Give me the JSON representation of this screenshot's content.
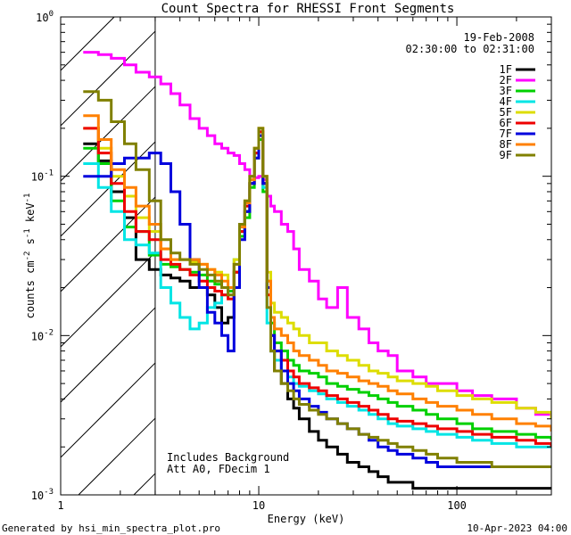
{
  "footer": {
    "generated_by": "Generated by hsi_min_spectra_plot.pro",
    "timestamp": "10-Apr-2023 04:00"
  },
  "info": {
    "date": "19-Feb-2008",
    "time_range": "02:30:00 to 02:31:00",
    "note1": "Includes Background",
    "note2": "Att A0, FDecim 1"
  },
  "colors": {
    "1F": "#000000",
    "2F": "#ff00ff",
    "3F": "#00d000",
    "4F": "#00e5e5",
    "5F": "#dddd00",
    "6F": "#ee0000",
    "7F": "#0000dd",
    "8F": "#ff8000",
    "9F": "#808000"
  },
  "chart_data": {
    "type": "line",
    "title": "Count Spectra for RHESSI Front Segments",
    "xlabel": "Energy (keV)",
    "ylabel": "counts cm^-2 s^-1 keV^-1",
    "xscale": "log",
    "yscale": "log",
    "xlim": [
      1,
      300
    ],
    "ylim": [
      0.001,
      1
    ],
    "x_ticks": [
      {
        "v": 1,
        "label": "1"
      },
      {
        "v": 10,
        "label": "10"
      },
      {
        "v": 100,
        "label": "100"
      }
    ],
    "y_ticks": [
      {
        "v": 0.001,
        "base": "10",
        "exp": "-3"
      },
      {
        "v": 0.01,
        "base": "10",
        "exp": "-2"
      },
      {
        "v": 0.1,
        "base": "10",
        "exp": "-1"
      },
      {
        "v": 1,
        "base": "10",
        "exp": "0"
      }
    ],
    "attenuator_cutoff_keV": 3,
    "legend_position": "top-right",
    "series": [
      {
        "name": "1F",
        "x": [
          1.3,
          1.55,
          1.8,
          2.1,
          2.4,
          2.8,
          3.2,
          3.6,
          4.0,
          4.5,
          5.0,
          5.5,
          6.0,
          6.5,
          7.0,
          7.5,
          8.0,
          8.5,
          9.0,
          9.5,
          10.0,
          10.5,
          11.0,
          11.5,
          12,
          13,
          14,
          15,
          16,
          18,
          20,
          22,
          25,
          28,
          32,
          36,
          40,
          45,
          50,
          60,
          70,
          80,
          100,
          120,
          150,
          200,
          250,
          300
        ],
        "y": [
          0.16,
          0.125,
          0.08,
          0.055,
          0.03,
          0.026,
          0.024,
          0.023,
          0.022,
          0.02,
          0.02,
          0.018,
          0.015,
          0.012,
          0.013,
          0.025,
          0.045,
          0.06,
          0.09,
          0.14,
          0.19,
          0.09,
          0.02,
          0.008,
          0.006,
          0.005,
          0.004,
          0.0035,
          0.003,
          0.0025,
          0.0022,
          0.002,
          0.0018,
          0.0016,
          0.0015,
          0.0014,
          0.0013,
          0.0012,
          0.0012,
          0.0011,
          0.0011,
          0.0011,
          0.0011,
          0.0011,
          0.0011,
          0.0011,
          0.0011,
          0.0011
        ]
      },
      {
        "name": "2F",
        "x": [
          1.3,
          1.55,
          1.8,
          2.1,
          2.4,
          2.8,
          3.2,
          3.6,
          4.0,
          4.5,
          5.0,
          5.5,
          6.0,
          6.5,
          7.0,
          7.5,
          8.0,
          8.5,
          9.0,
          9.5,
          10.0,
          10.5,
          11.0,
          11.5,
          12,
          13,
          14,
          15,
          16,
          18,
          20,
          22,
          25,
          28,
          32,
          36,
          40,
          45,
          50,
          60,
          70,
          80,
          100,
          120,
          150,
          200,
          250,
          300
        ],
        "y": [
          0.6,
          0.58,
          0.55,
          0.5,
          0.45,
          0.42,
          0.38,
          0.33,
          0.28,
          0.23,
          0.2,
          0.18,
          0.16,
          0.15,
          0.14,
          0.135,
          0.12,
          0.11,
          0.1,
          0.098,
          0.1,
          0.095,
          0.075,
          0.065,
          0.06,
          0.05,
          0.045,
          0.035,
          0.026,
          0.022,
          0.017,
          0.015,
          0.02,
          0.013,
          0.011,
          0.009,
          0.008,
          0.0075,
          0.006,
          0.0055,
          0.005,
          0.005,
          0.0045,
          0.0042,
          0.004,
          0.0035,
          0.0032,
          0.003
        ]
      },
      {
        "name": "3F",
        "x": [
          1.3,
          1.55,
          1.8,
          2.1,
          2.4,
          2.8,
          3.2,
          3.6,
          4.0,
          4.5,
          5.0,
          5.5,
          6.0,
          6.5,
          7.0,
          7.5,
          8.0,
          8.5,
          9.0,
          9.5,
          10.0,
          10.5,
          11.0,
          11.5,
          12,
          13,
          14,
          15,
          16,
          18,
          20,
          22,
          25,
          28,
          32,
          36,
          40,
          45,
          50,
          60,
          70,
          80,
          100,
          120,
          150,
          200,
          250,
          300
        ],
        "y": [
          0.15,
          0.12,
          0.07,
          0.048,
          0.045,
          0.032,
          0.028,
          0.027,
          0.026,
          0.025,
          0.024,
          0.022,
          0.021,
          0.02,
          0.019,
          0.025,
          0.042,
          0.055,
          0.085,
          0.13,
          0.17,
          0.08,
          0.022,
          0.012,
          0.009,
          0.008,
          0.007,
          0.0065,
          0.006,
          0.0058,
          0.0055,
          0.005,
          0.0048,
          0.0046,
          0.0044,
          0.0042,
          0.004,
          0.0038,
          0.0036,
          0.0034,
          0.0032,
          0.003,
          0.0028,
          0.0026,
          0.0025,
          0.0024,
          0.0023,
          0.0022
        ]
      },
      {
        "name": "4F",
        "x": [
          1.3,
          1.55,
          1.8,
          2.1,
          2.4,
          2.8,
          3.2,
          3.6,
          4.0,
          4.5,
          5.0,
          5.5,
          6.0,
          6.5,
          7.0,
          7.5,
          8.0,
          8.5,
          9.0,
          9.5,
          10.0,
          10.5,
          11.0,
          11.5,
          12,
          13,
          14,
          15,
          16,
          18,
          20,
          22,
          25,
          28,
          32,
          36,
          40,
          45,
          50,
          60,
          70,
          80,
          100,
          120,
          150,
          200,
          250,
          300
        ],
        "y": [
          0.12,
          0.085,
          0.06,
          0.04,
          0.037,
          0.033,
          0.02,
          0.016,
          0.013,
          0.011,
          0.012,
          0.015,
          0.016,
          0.018,
          0.02,
          0.03,
          0.045,
          0.065,
          0.09,
          0.14,
          0.18,
          0.085,
          0.012,
          0.008,
          0.007,
          0.006,
          0.0055,
          0.005,
          0.0048,
          0.0045,
          0.0043,
          0.004,
          0.0038,
          0.0036,
          0.0034,
          0.0032,
          0.003,
          0.0028,
          0.0027,
          0.0026,
          0.0025,
          0.0024,
          0.0023,
          0.0022,
          0.0021,
          0.002,
          0.002,
          0.002
        ]
      },
      {
        "name": "5F",
        "x": [
          1.3,
          1.55,
          1.8,
          2.1,
          2.4,
          2.8,
          3.2,
          3.6,
          4.0,
          4.5,
          5.0,
          5.5,
          6.0,
          6.5,
          7.0,
          7.5,
          8.0,
          8.5,
          9.0,
          9.5,
          10.0,
          10.5,
          11.0,
          11.5,
          12,
          13,
          14,
          15,
          16,
          18,
          20,
          22,
          25,
          28,
          32,
          36,
          40,
          45,
          50,
          60,
          70,
          80,
          100,
          120,
          150,
          200,
          250,
          300
        ],
        "y": [
          0.2,
          0.15,
          0.1,
          0.075,
          0.055,
          0.045,
          0.035,
          0.03,
          0.03,
          0.029,
          0.028,
          0.026,
          0.025,
          0.024,
          0.02,
          0.03,
          0.05,
          0.07,
          0.1,
          0.15,
          0.2,
          0.1,
          0.025,
          0.016,
          0.014,
          0.013,
          0.012,
          0.011,
          0.01,
          0.009,
          0.009,
          0.008,
          0.0075,
          0.007,
          0.0065,
          0.006,
          0.0058,
          0.0055,
          0.0052,
          0.005,
          0.0048,
          0.0045,
          0.0042,
          0.004,
          0.0038,
          0.0035,
          0.0033,
          0.003
        ]
      },
      {
        "name": "6F",
        "x": [
          1.3,
          1.55,
          1.8,
          2.1,
          2.4,
          2.8,
          3.2,
          3.6,
          4.0,
          4.5,
          5.0,
          5.5,
          6.0,
          6.5,
          7.0,
          7.5,
          8.0,
          8.5,
          9.0,
          9.5,
          10.0,
          10.5,
          11.0,
          11.5,
          12,
          13,
          14,
          15,
          16,
          18,
          20,
          22,
          25,
          28,
          32,
          36,
          40,
          45,
          50,
          60,
          70,
          80,
          100,
          120,
          150,
          200,
          250,
          300
        ],
        "y": [
          0.2,
          0.14,
          0.09,
          0.06,
          0.045,
          0.04,
          0.03,
          0.028,
          0.026,
          0.024,
          0.022,
          0.02,
          0.019,
          0.018,
          0.017,
          0.025,
          0.045,
          0.065,
          0.09,
          0.14,
          0.19,
          0.09,
          0.018,
          0.01,
          0.008,
          0.007,
          0.006,
          0.0055,
          0.005,
          0.0047,
          0.0045,
          0.0042,
          0.004,
          0.0038,
          0.0036,
          0.0034,
          0.0032,
          0.003,
          0.0029,
          0.0028,
          0.0027,
          0.0026,
          0.0025,
          0.0024,
          0.0023,
          0.0022,
          0.0021,
          0.002
        ]
      },
      {
        "name": "7F",
        "x": [
          1.3,
          1.55,
          1.8,
          2.1,
          2.4,
          2.8,
          3.2,
          3.6,
          4.0,
          4.5,
          5.0,
          5.5,
          6.0,
          6.5,
          7.0,
          7.5,
          8.0,
          8.5,
          9.0,
          9.5,
          10.0,
          10.5,
          11.0,
          11.5,
          12,
          13,
          14,
          15,
          16,
          18,
          20,
          22,
          25,
          28,
          32,
          36,
          40,
          45,
          50,
          60,
          70,
          80,
          100,
          120,
          150,
          200,
          250,
          300
        ],
        "y": [
          0.1,
          0.1,
          0.12,
          0.13,
          0.13,
          0.14,
          0.12,
          0.08,
          0.05,
          0.03,
          0.02,
          0.014,
          0.012,
          0.01,
          0.008,
          0.02,
          0.04,
          0.06,
          0.09,
          0.13,
          0.18,
          0.09,
          0.02,
          0.01,
          0.008,
          0.006,
          0.005,
          0.0045,
          0.004,
          0.0036,
          0.0033,
          0.003,
          0.0028,
          0.0026,
          0.0024,
          0.0022,
          0.002,
          0.0019,
          0.0018,
          0.0017,
          0.0016,
          0.0015,
          0.0015,
          0.0015,
          0.0015,
          0.0015,
          0.0015,
          0.0015
        ]
      },
      {
        "name": "8F",
        "x": [
          1.3,
          1.55,
          1.8,
          2.1,
          2.4,
          2.8,
          3.2,
          3.6,
          4.0,
          4.5,
          5.0,
          5.5,
          6.0,
          6.5,
          7.0,
          7.5,
          8.0,
          8.5,
          9.0,
          9.5,
          10.0,
          10.5,
          11.0,
          11.5,
          12,
          13,
          14,
          15,
          16,
          18,
          20,
          22,
          25,
          28,
          32,
          36,
          40,
          45,
          50,
          60,
          70,
          80,
          100,
          120,
          150,
          200,
          250,
          300
        ],
        "y": [
          0.24,
          0.17,
          0.11,
          0.085,
          0.065,
          0.05,
          0.035,
          0.03,
          0.03,
          0.03,
          0.028,
          0.026,
          0.024,
          0.022,
          0.02,
          0.028,
          0.048,
          0.068,
          0.095,
          0.15,
          0.2,
          0.1,
          0.022,
          0.013,
          0.011,
          0.01,
          0.009,
          0.008,
          0.0075,
          0.007,
          0.0065,
          0.006,
          0.0058,
          0.0055,
          0.0052,
          0.005,
          0.0048,
          0.0045,
          0.0043,
          0.004,
          0.0038,
          0.0036,
          0.0034,
          0.0032,
          0.003,
          0.0028,
          0.0027,
          0.0025
        ]
      },
      {
        "name": "9F",
        "x": [
          1.3,
          1.55,
          1.8,
          2.1,
          2.4,
          2.8,
          3.2,
          3.6,
          4.0,
          4.5,
          5.0,
          5.5,
          6.0,
          6.5,
          7.0,
          7.5,
          8.0,
          8.5,
          9.0,
          9.5,
          10.0,
          10.5,
          11.0,
          11.5,
          12,
          13,
          14,
          15,
          16,
          18,
          20,
          22,
          25,
          28,
          32,
          36,
          40,
          45,
          50,
          60,
          70,
          80,
          100,
          120,
          150,
          200,
          250,
          300
        ],
        "y": [
          0.34,
          0.3,
          0.22,
          0.16,
          0.11,
          0.07,
          0.04,
          0.033,
          0.03,
          0.028,
          0.026,
          0.024,
          0.022,
          0.02,
          0.018,
          0.028,
          0.05,
          0.07,
          0.1,
          0.15,
          0.2,
          0.1,
          0.015,
          0.008,
          0.006,
          0.005,
          0.0045,
          0.004,
          0.0037,
          0.0034,
          0.0032,
          0.003,
          0.0028,
          0.0026,
          0.0024,
          0.0023,
          0.0022,
          0.0021,
          0.002,
          0.0019,
          0.0018,
          0.0017,
          0.0016,
          0.0016,
          0.0015,
          0.0015,
          0.0015,
          0.0015
        ]
      }
    ]
  }
}
